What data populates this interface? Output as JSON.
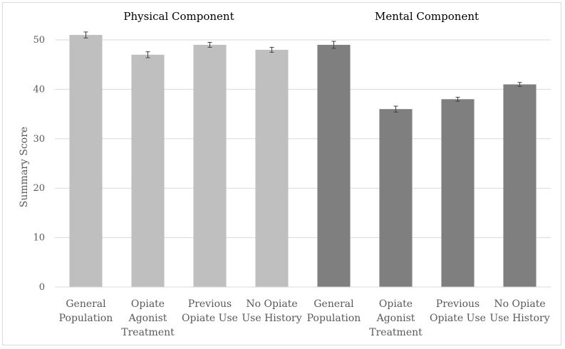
{
  "chart_data": {
    "type": "bar",
    "ylabel": "Summary Score",
    "ylim": [
      0,
      50
    ],
    "yticks": [
      0,
      10,
      20,
      30,
      40,
      50
    ],
    "grid": true,
    "error_bars": true,
    "groups": [
      {
        "name": "Physical Component",
        "color": "#bfbfbf",
        "categories": [
          "General\nPopulation",
          "Opiate\nAgonist\nTreatment",
          "Previous\nOpiate Use",
          "No Opiate\nUse History"
        ],
        "values": [
          51,
          47,
          49,
          48
        ],
        "errors": [
          0.6,
          0.6,
          0.5,
          0.5
        ]
      },
      {
        "name": "Mental Component",
        "color": "#7f7f7f",
        "categories": [
          "General\nPopulation",
          "Opiate\nAgonist\nTreatment",
          "Previous\nOpiate Use",
          "No Opiate\nUse History"
        ],
        "values": [
          49,
          36,
          38,
          41
        ],
        "errors": [
          0.7,
          0.6,
          0.4,
          0.4
        ]
      }
    ]
  }
}
